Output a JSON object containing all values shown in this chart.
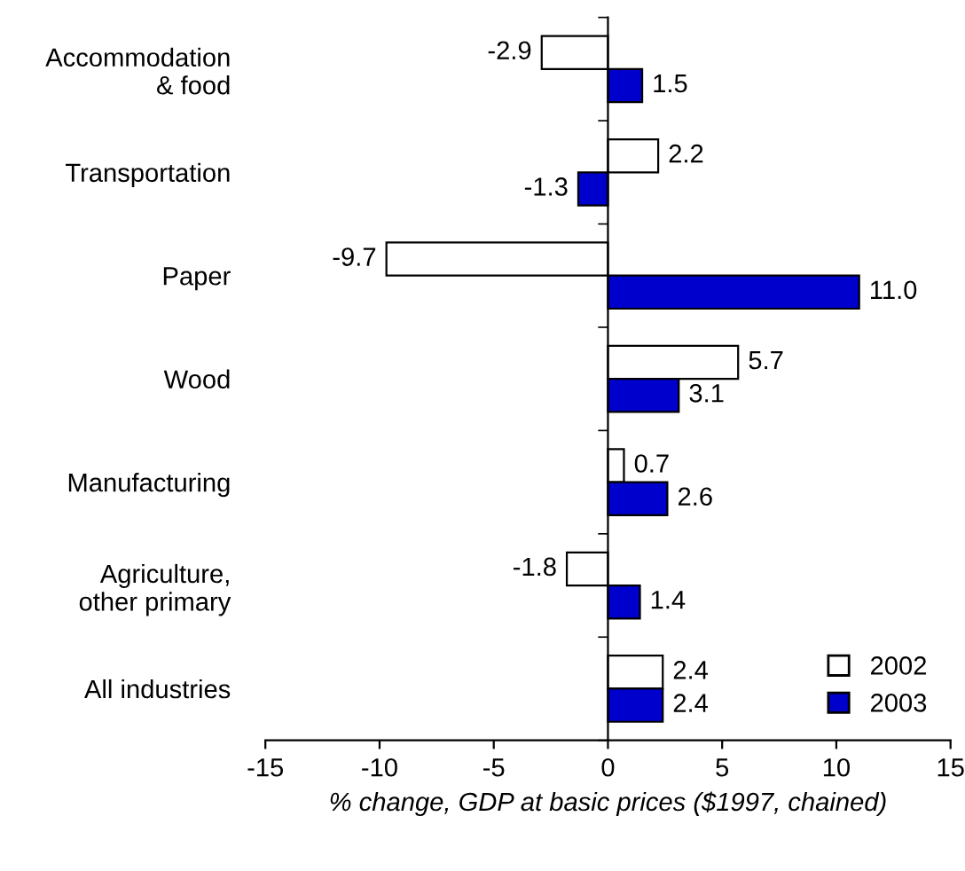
{
  "chart_data": {
    "type": "bar",
    "orientation": "horizontal",
    "xlabel": "% change, GDP at basic prices ($1997, chained)",
    "categories": [
      "Accommodation\n& food",
      "Transportation",
      "Paper",
      "Wood",
      "Manufacturing",
      "Agriculture,\nother primary",
      "All industries"
    ],
    "series": [
      {
        "name": "2002",
        "color": "#ffffff",
        "values": [
          -2.9,
          2.2,
          -9.7,
          5.7,
          0.7,
          -1.8,
          2.4
        ],
        "value_labels": [
          "-2.9",
          "2.2",
          "-9.7",
          "5.7",
          "0.7",
          "-1.8",
          "2.4"
        ]
      },
      {
        "name": "2003",
        "color": "#0000cc",
        "values": [
          1.5,
          -1.3,
          11.0,
          3.1,
          2.6,
          1.4,
          2.4
        ],
        "value_labels": [
          "1.5",
          "-1.3",
          "11.0",
          "3.1",
          "2.6",
          "1.4",
          "2.4"
        ]
      }
    ],
    "xlim": [
      -15,
      15
    ],
    "xticks": [
      -15,
      -10,
      -5,
      0,
      5,
      10,
      15
    ],
    "legend": "bottom right"
  }
}
